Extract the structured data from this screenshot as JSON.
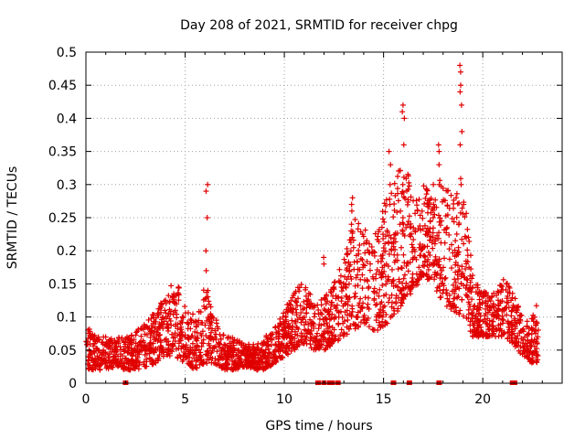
{
  "chart_data": {
    "type": "scatter",
    "title": "Day 208 of 2021, SRMTID for receiver chpg",
    "xlabel": "GPS time / hours",
    "ylabel": "SRMTID / TECUs",
    "xlim": [
      0,
      24
    ],
    "ylim": [
      0,
      0.5
    ],
    "grid": true,
    "marker": "+",
    "series_color": "#e00000",
    "x_ticks": [
      0,
      5,
      10,
      15,
      20
    ],
    "x_tick_labels": [
      "0",
      "5",
      "10",
      "15",
      "20"
    ],
    "y_ticks": [
      0,
      0.05,
      0.1,
      0.15,
      0.2,
      0.25,
      0.3,
      0.35,
      0.4,
      0.45,
      0.5
    ],
    "y_tick_labels": [
      "0",
      "0.05",
      "0.1",
      "0.15",
      "0.2",
      "0.25",
      "0.3",
      "0.35",
      "0.4",
      "0.45",
      "0.5"
    ],
    "gap_markers_x": [
      2.0,
      11.7,
      12.0,
      12.3,
      12.4,
      12.7,
      15.5,
      16.3,
      17.8,
      21.5,
      21.6
    ],
    "envelope": {
      "description": "Approximate band (hours, low, high) of scattered SRMTID values",
      "hours": [
        0,
        0.5,
        1,
        1.5,
        2,
        2.5,
        3,
        3.5,
        4,
        4.5,
        5,
        5.5,
        6,
        6.5,
        7,
        7.5,
        8,
        8.5,
        9,
        9.5,
        10,
        10.5,
        11,
        11.5,
        12,
        12.5,
        13,
        13.5,
        14,
        14.5,
        15,
        15.5,
        16,
        16.5,
        17,
        17.5,
        18,
        18.5,
        19,
        19.5,
        20,
        20.5,
        21,
        21.5,
        22,
        22.5,
        22.8
      ],
      "low": [
        0.02,
        0.02,
        0.02,
        0.025,
        0.02,
        0.02,
        0.025,
        0.03,
        0.04,
        0.04,
        0.03,
        0.02,
        0.03,
        0.03,
        0.02,
        0.02,
        0.025,
        0.02,
        0.02,
        0.03,
        0.04,
        0.05,
        0.06,
        0.05,
        0.05,
        0.06,
        0.07,
        0.08,
        0.09,
        0.08,
        0.08,
        0.1,
        0.12,
        0.14,
        0.16,
        0.15,
        0.12,
        0.11,
        0.1,
        0.07,
        0.07,
        0.07,
        0.07,
        0.06,
        0.04,
        0.03,
        0.03
      ],
      "high": [
        0.09,
        0.07,
        0.07,
        0.07,
        0.07,
        0.08,
        0.09,
        0.11,
        0.13,
        0.16,
        0.12,
        0.1,
        0.15,
        0.1,
        0.07,
        0.07,
        0.06,
        0.06,
        0.07,
        0.09,
        0.11,
        0.14,
        0.16,
        0.12,
        0.13,
        0.15,
        0.2,
        0.25,
        0.24,
        0.22,
        0.28,
        0.3,
        0.35,
        0.28,
        0.3,
        0.28,
        0.32,
        0.3,
        0.32,
        0.16,
        0.14,
        0.14,
        0.16,
        0.14,
        0.1,
        0.1,
        0.14
      ]
    },
    "spikes": [
      {
        "x": 6.1,
        "values": [
          0.3,
          0.29,
          0.25,
          0.2,
          0.17,
          0.14
        ]
      },
      {
        "x": 15.3,
        "values": [
          0.35,
          0.33,
          0.3,
          0.27
        ]
      },
      {
        "x": 16.0,
        "values": [
          0.42,
          0.41,
          0.4,
          0.36,
          0.3,
          0.25
        ]
      },
      {
        "x": 17.5,
        "values": [
          0.3,
          0.27,
          0.25,
          0.22
        ]
      },
      {
        "x": 17.8,
        "values": [
          0.36,
          0.35,
          0.33,
          0.3
        ]
      },
      {
        "x": 18.9,
        "values": [
          0.48,
          0.47,
          0.45,
          0.44,
          0.42,
          0.38,
          0.36,
          0.3
        ]
      },
      {
        "x": 12.0,
        "values": [
          0.19,
          0.18
        ]
      },
      {
        "x": 13.4,
        "values": [
          0.28,
          0.27,
          0.26,
          0.24
        ]
      }
    ]
  }
}
